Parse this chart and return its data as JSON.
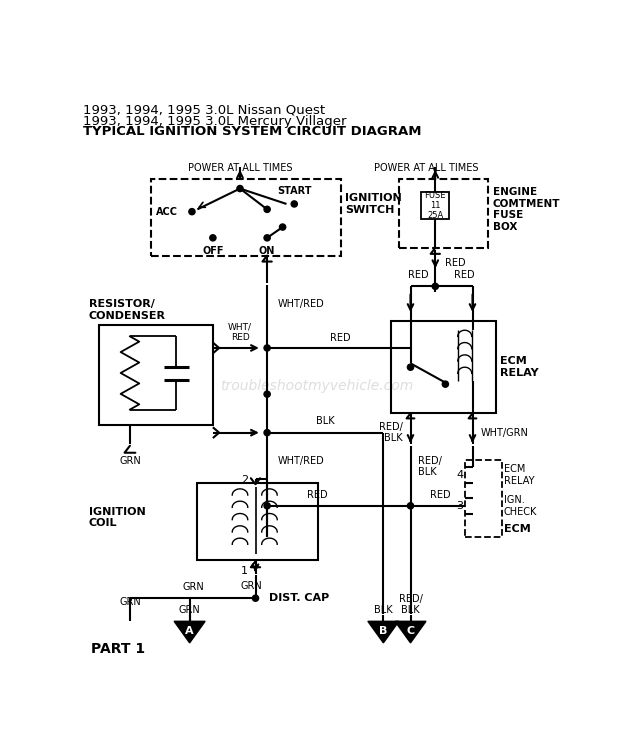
{
  "bg_color": "#ffffff",
  "line_color": "#000000",
  "title_lines": [
    "1993, 1994, 1995 3.0L Nissan Quest",
    "1993, 1994, 1995 3.0L Mercury Villager",
    "TYPICAL IGNITION SYSTEM CIRCUIT DIAGRAM"
  ],
  "title_bold": [
    false,
    false,
    true
  ],
  "watermark": "troubleshootmyvehicle.com",
  "part_label": "PART 1"
}
